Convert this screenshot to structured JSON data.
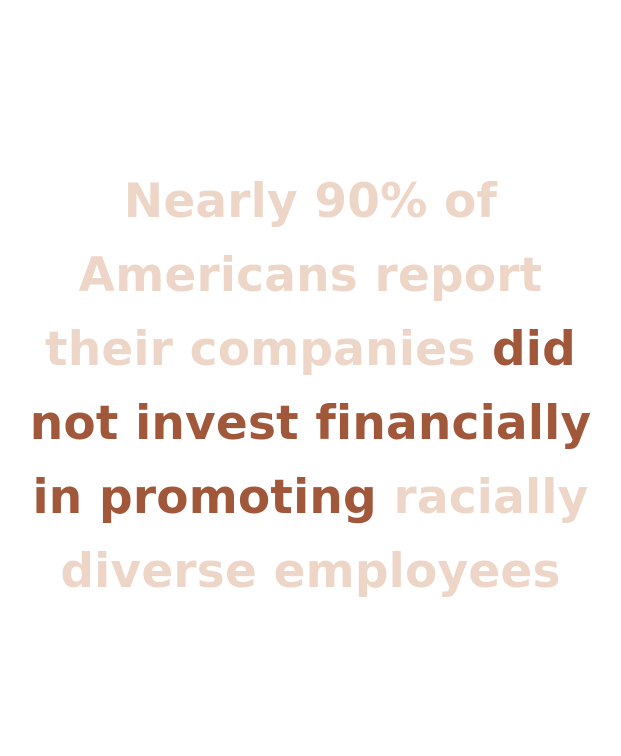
{
  "colors": {
    "background": "#ffffff",
    "muted_text": "#edd6c8",
    "accent_text": "#a0573a"
  },
  "quote": {
    "line1": "Nearly 90% of",
    "line2": "Americans report",
    "line3_muted": "their companies ",
    "line3_accent": "did",
    "line4_accent": "not invest financially",
    "line5_accent": "in promoting",
    "line5_muted": " racially",
    "line6": "diverse employees"
  }
}
